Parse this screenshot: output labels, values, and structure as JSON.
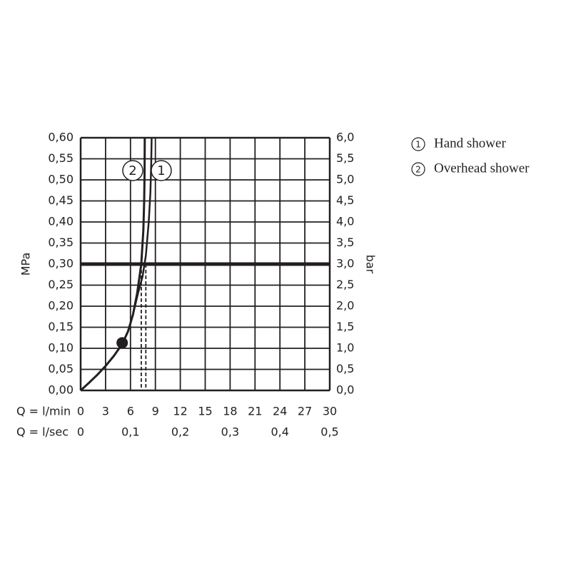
{
  "chart_data": {
    "type": "line",
    "xlabel": "Q = l/min",
    "x2label": "Q = l/sec",
    "ylabel": "MPa",
    "y2label": "bar",
    "xlim": [
      0,
      30
    ],
    "xticks": [
      0,
      3,
      6,
      9,
      12,
      15,
      18,
      21,
      24,
      27,
      30
    ],
    "x2lim": [
      0,
      0.5
    ],
    "x2ticks": [
      0,
      {
        "value": 0.1,
        "label": "0,1"
      },
      {
        "value": 0.2,
        "label": "0,2"
      },
      {
        "value": 0.3,
        "label": "0,3"
      },
      {
        "value": 0.4,
        "label": "0,4"
      },
      {
        "value": 0.5,
        "label": "0,5"
      }
    ],
    "ylim": [
      0,
      0.6
    ],
    "yticks": [
      {
        "value": 0,
        "label": "0,00"
      },
      {
        "value": 0.05,
        "label": "0,05"
      },
      {
        "value": 0.1,
        "label": "0,10"
      },
      {
        "value": 0.15,
        "label": "0,15"
      },
      {
        "value": 0.2,
        "label": "0,20"
      },
      {
        "value": 0.25,
        "label": "0,25"
      },
      {
        "value": 0.3,
        "label": "0,30"
      },
      {
        "value": 0.35,
        "label": "0,35"
      },
      {
        "value": 0.4,
        "label": "0,40"
      },
      {
        "value": 0.45,
        "label": "0,45"
      },
      {
        "value": 0.5,
        "label": "0,50"
      },
      {
        "value": 0.55,
        "label": "0,55"
      },
      {
        "value": 0.6,
        "label": "0,60"
      }
    ],
    "y2lim": [
      0,
      6
    ],
    "y2ticks": [
      {
        "value": 0,
        "label": "0,0"
      },
      {
        "value": 0.5,
        "label": "0,5"
      },
      {
        "value": 1,
        "label": "1,0"
      },
      {
        "value": 1.5,
        "label": "1,5"
      },
      {
        "value": 2,
        "label": "2,0"
      },
      {
        "value": 2.5,
        "label": "2,5"
      },
      {
        "value": 3,
        "label": "3,0"
      },
      {
        "value": 3.5,
        "label": "3,5"
      },
      {
        "value": 4,
        "label": "4,0"
      },
      {
        "value": 4.5,
        "label": "4,5"
      },
      {
        "value": 5,
        "label": "5,0"
      },
      {
        "value": 5.5,
        "label": "5,5"
      },
      {
        "value": 6,
        "label": "6,0"
      }
    ],
    "grid": true,
    "color": "#231f20",
    "threshold": 0.3,
    "flow_at_threshold": [
      7.3,
      7.85
    ],
    "marker": {
      "x": 5,
      "y": 0.113
    },
    "series": [
      {
        "name": "Hand shower",
        "label": "1",
        "x": [
          0,
          1,
          2,
          3,
          4,
          5,
          5.7,
          6.3,
          6.9,
          7.45,
          7.85,
          8.2,
          8.4,
          8.5,
          8.55
        ],
        "values": [
          0,
          0.018,
          0.037,
          0.058,
          0.082,
          0.11,
          0.14,
          0.18,
          0.23,
          0.27,
          0.32,
          0.4,
          0.47,
          0.54,
          0.6
        ]
      },
      {
        "name": "Overhead shower",
        "label": "2",
        "x": [
          0,
          1,
          2,
          3,
          4,
          5,
          5.7,
          6.3,
          6.8,
          7.3,
          7.55,
          7.65,
          7.7,
          7.72
        ],
        "values": [
          0,
          0.018,
          0.037,
          0.058,
          0.082,
          0.11,
          0.14,
          0.18,
          0.23,
          0.3,
          0.38,
          0.45,
          0.52,
          0.6
        ]
      }
    ]
  }
}
